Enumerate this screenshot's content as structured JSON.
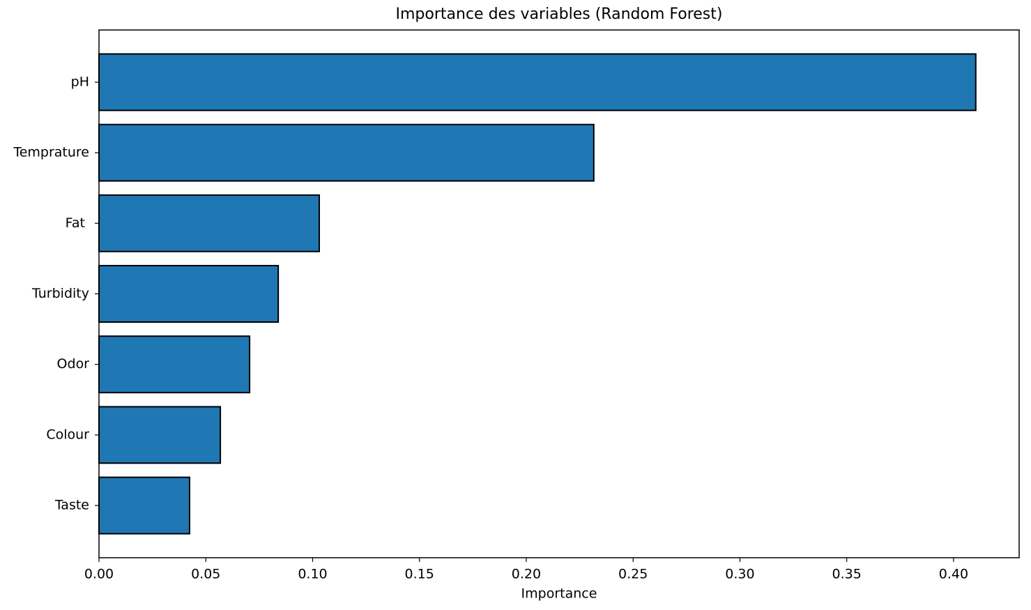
{
  "chart_data": {
    "type": "barh",
    "title": "Importance des variables (Random Forest)",
    "x_label": "Importance",
    "categories": [
      "pH",
      "Temprature",
      "Fat ",
      "Turbidity",
      "Odor",
      "Colour",
      "Taste"
    ],
    "values": [
      0.4104,
      0.2316,
      0.1031,
      0.0839,
      0.0705,
      0.0568,
      0.0424
    ],
    "color": "#1f77b4",
    "edgecolor": "#000000",
    "xlim": [
      0,
      0.4307
    ],
    "xticks": [
      {
        "value": 0,
        "label": "0.00"
      },
      0.05,
      {
        "value": 0.1,
        "label": "0.10"
      },
      0.15,
      {
        "value": 0.2,
        "label": "0.20"
      },
      0.25,
      {
        "value": 0.3,
        "label": "0.30"
      },
      0.35,
      {
        "value": 0.4,
        "label": "0.40"
      }
    ],
    "grid": false
  }
}
